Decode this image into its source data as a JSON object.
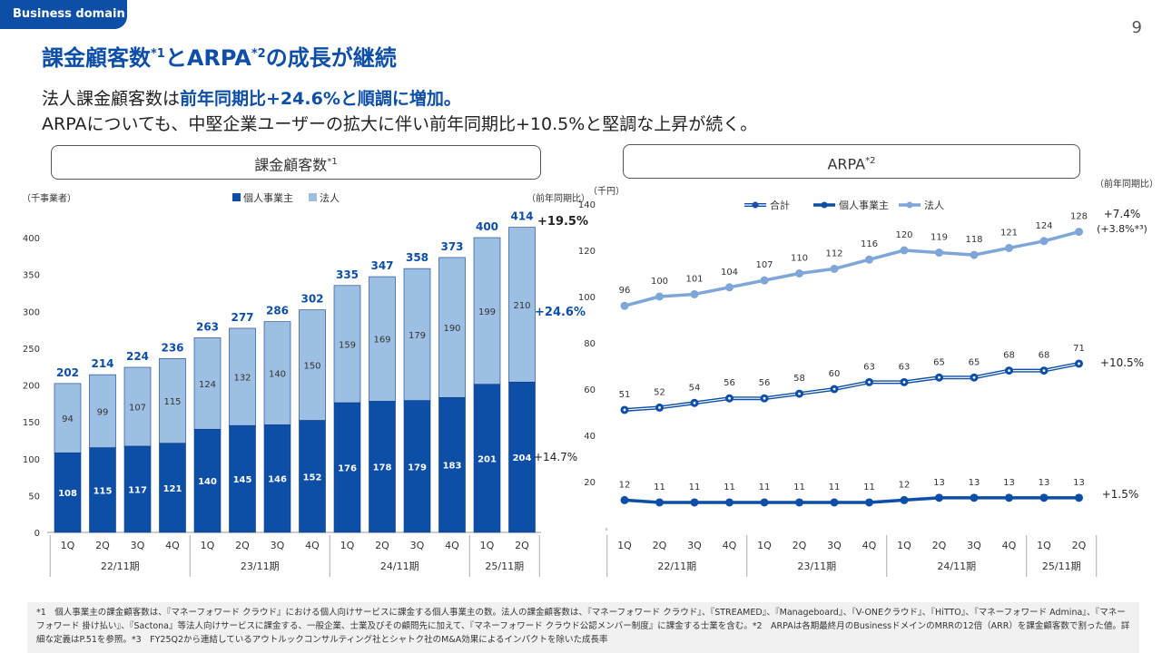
{
  "domain_tag": "Business domain",
  "page_number": "9",
  "title": {
    "main": "課金顧客数",
    "sup1": "*1",
    "mid": "とARPA",
    "sup2": "*2",
    "end": "の成長が継続"
  },
  "subtitle": {
    "line1_a": "法人課金顧客数は",
    "line1_b": "前年同期比+24.6%と順調に増加。",
    "line2": "ARPAについても、中堅企業ユーザーの拡大に伴い前年同期比+10.5%と堅調な上昇が続く。"
  },
  "left_header": {
    "label": "課金顧客数",
    "sup": "*1"
  },
  "right_header": {
    "label": "ARPA",
    "sup": "*2"
  },
  "colors": {
    "brand": "#0d4ea6",
    "individual": "#0d4ea6",
    "corporate": "#9dbfe3",
    "total": "#7fa6d8"
  },
  "chart_data": [
    {
      "type": "bar",
      "stacked": true,
      "unit_label": "（千事業者）",
      "yoy_label": "（前年同期比）",
      "ylim": [
        0,
        400
      ],
      "yticks": [
        0,
        50,
        100,
        150,
        200,
        250,
        300,
        350,
        400
      ],
      "categories": [
        "1Q",
        "2Q",
        "3Q",
        "4Q",
        "1Q",
        "2Q",
        "3Q",
        "4Q",
        "1Q",
        "2Q",
        "3Q",
        "4Q",
        "1Q",
        "2Q"
      ],
      "periods": [
        {
          "label": "22/11期",
          "count": 4
        },
        {
          "label": "23/11期",
          "count": 4
        },
        {
          "label": "24/11期",
          "count": 4
        },
        {
          "label": "25/11期",
          "count": 2
        }
      ],
      "series": [
        {
          "name": "個人事業主",
          "values": [
            108,
            115,
            117,
            121,
            140,
            145,
            146,
            152,
            176,
            178,
            179,
            183,
            201,
            204
          ]
        },
        {
          "name": "法人",
          "values": [
            94,
            99,
            107,
            115,
            124,
            132,
            140,
            150,
            159,
            169,
            179,
            190,
            199,
            210
          ]
        }
      ],
      "totals": [
        202,
        214,
        224,
        236,
        263,
        277,
        286,
        302,
        335,
        347,
        358,
        373,
        400,
        414
      ],
      "growth": {
        "total": "+19.5%",
        "corporate": "+24.6%",
        "individual": "+14.7%"
      }
    },
    {
      "type": "line",
      "unit_label": "（千円）",
      "yoy_label": "（前年同期比）",
      "ylim": [
        0,
        140
      ],
      "yticks": [
        20,
        40,
        60,
        80,
        100,
        120,
        140
      ],
      "categories": [
        "1Q",
        "2Q",
        "3Q",
        "4Q",
        "1Q",
        "2Q",
        "3Q",
        "4Q",
        "1Q",
        "2Q",
        "3Q",
        "4Q",
        "1Q",
        "2Q"
      ],
      "periods": [
        {
          "label": "22/11期",
          "count": 4
        },
        {
          "label": "23/11期",
          "count": 4
        },
        {
          "label": "24/11期",
          "count": 4
        },
        {
          "label": "25/11期",
          "count": 2
        }
      ],
      "series": [
        {
          "name": "合計",
          "values": [
            51,
            52,
            54,
            56,
            56,
            58,
            60,
            63,
            63,
            65,
            65,
            68,
            68,
            71
          ]
        },
        {
          "name": "個人事業主",
          "values": [
            12,
            11,
            11,
            11,
            11,
            11,
            11,
            11,
            12,
            13,
            13,
            13,
            13,
            13
          ]
        },
        {
          "name": "法人",
          "values": [
            96,
            100,
            101,
            104,
            107,
            110,
            112,
            116,
            120,
            119,
            118,
            121,
            124,
            128
          ]
        }
      ],
      "growth": {
        "corporate": "+7.4%",
        "corporate_sub": "(+3.8%*³)",
        "total": "+10.5%",
        "individual": "+1.5%"
      }
    }
  ],
  "footnote": "*1　個人事業主の課金顧客数は、『マネーフォワード クラウド』における個人向けサービスに課金する個人事業主の数。法人の課金顧客数は、『マネーフォワード クラウド』、『STREAMED』、『Manageboard』、『V-ONEクラウド』、『HiTTO』、『マネーフォワード Admina』、『マネーフォワード 掛け払い』、『Sactona』等法人向けサービスに課金する、一般企業、士業及びその顧問先に加えて、『マネーフォワード クラウド公認メンバー制度』に課金する士業を含む。*2　ARPAは各期最終月のBusinessドメインのMRRの12倍（ARR）を課金顧客数で割った値。詳細な定義はP.51を参照。*3　FY25Q2から連結しているアウトルックコンサルティング社とシャトク社のM&A効果によるインパクトを除いた成長率"
}
